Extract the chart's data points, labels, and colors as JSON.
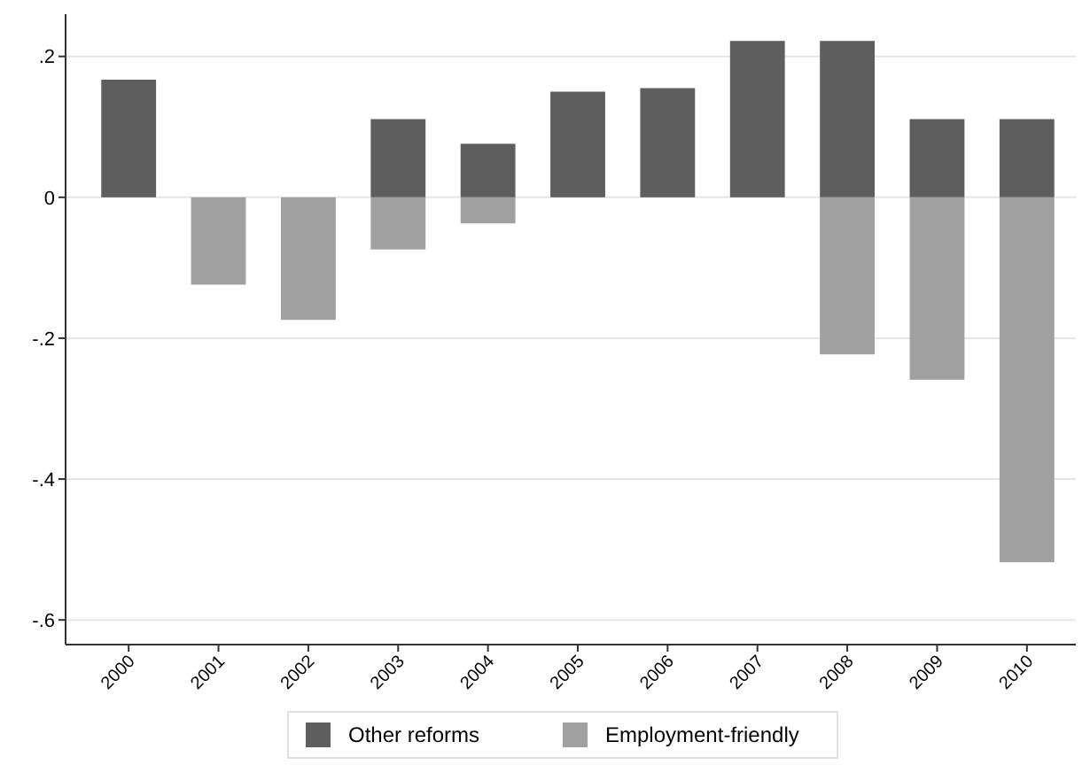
{
  "chart_data": {
    "type": "bar",
    "categories": [
      "2000",
      "2001",
      "2002",
      "2003",
      "2004",
      "2005",
      "2006",
      "2007",
      "2008",
      "2009",
      "2010"
    ],
    "series": [
      {
        "name": "Other reforms",
        "color": "#5e5e5e",
        "values": [
          0.167,
          null,
          null,
          0.111,
          0.076,
          0.15,
          0.155,
          0.222,
          0.222,
          0.111,
          0.111
        ]
      },
      {
        "name": "Employment-friendly",
        "color": "#a0a0a0",
        "values": [
          null,
          -0.124,
          -0.174,
          -0.074,
          -0.037,
          null,
          null,
          null,
          -0.223,
          -0.259,
          -0.518
        ]
      }
    ],
    "ylim": [
      -0.635,
      0.26
    ],
    "yticks": [
      {
        "value": 0.2,
        "label": ".2"
      },
      0,
      {
        "value": -0.2,
        "label": "-.2"
      },
      {
        "value": -0.4,
        "label": "-.4"
      },
      {
        "value": -0.6,
        "label": "-.6"
      }
    ],
    "grid": "y",
    "legend": "bottom"
  }
}
